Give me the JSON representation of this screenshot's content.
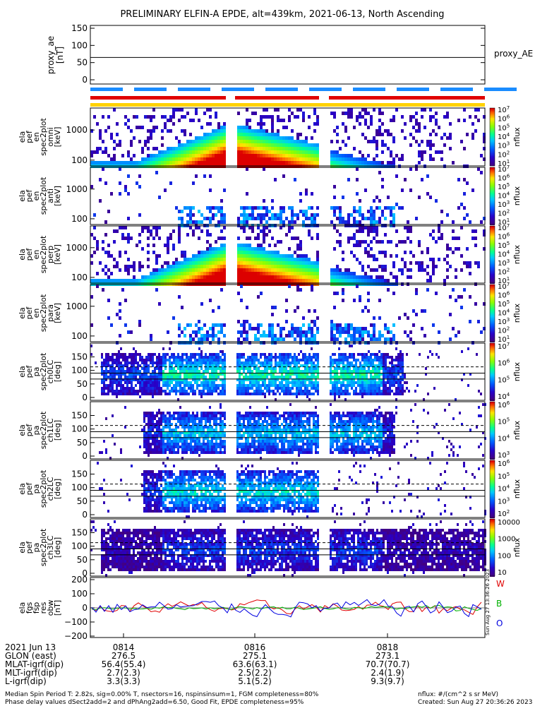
{
  "title": "PRELIMINARY ELFIN-A EPDE, alt=439km, 2021-06-13, North Ascending",
  "chart_data": [
    {
      "type": "line",
      "name": "proxy_ae",
      "ylabel": "proxy_ae [nT]",
      "legend": "proxy_AE",
      "yticks": [
        "150",
        "100",
        "50",
        "0"
      ],
      "ylim": [
        0,
        150
      ],
      "value": 65
    },
    {
      "type": "heatmap",
      "name": "energy-spectrogram-1",
      "ylabel": [
        "ela",
        "pef",
        "en",
        "spec2plot",
        "omni",
        "[keV]"
      ],
      "yticks": [
        "1000",
        "100"
      ],
      "zlabel": "nflux",
      "zticks": [
        "10^7",
        "10^6",
        "10^5",
        "10^4",
        "10^3",
        "10^2",
        "10^1"
      ]
    },
    {
      "type": "heatmap",
      "name": "energy-spectrogram-2",
      "ylabel": [
        "ela",
        "pef",
        "en",
        "spec2plot",
        "anti",
        "[keV]"
      ],
      "yticks": [
        "1000",
        "100"
      ],
      "zlabel": "nflux",
      "zticks": [
        "10^7",
        "10^6",
        "10^5",
        "10^4",
        "10^3",
        "10^2",
        "10^1"
      ]
    },
    {
      "type": "heatmap",
      "name": "energy-spectrogram-3",
      "ylabel": [
        "ela",
        "pef",
        "en",
        "spec2plot",
        "perp",
        "[keV]"
      ],
      "yticks": [
        "1000",
        "100"
      ],
      "zlabel": "nflux",
      "zticks": [
        "10^7",
        "10^6",
        "10^5",
        "10^4",
        "10^3",
        "10^2",
        "10^1"
      ]
    },
    {
      "type": "heatmap",
      "name": "energy-spectrogram-4",
      "ylabel": [
        "ela",
        "pef",
        "en",
        "spec2plot",
        "para",
        "[keV]"
      ],
      "yticks": [
        "1000",
        "100"
      ],
      "zlabel": "nflux",
      "zticks": [
        "10^7",
        "10^6",
        "10^5",
        "10^4",
        "10^3",
        "10^2",
        "10^1"
      ]
    },
    {
      "type": "heatmap",
      "name": "pitch-spectrogram-0",
      "ylabel": [
        "ela",
        "pef",
        "pa",
        "spec2plot",
        "ch0LC",
        "[deg]"
      ],
      "yticks": [
        "150",
        "100",
        "50",
        "0"
      ],
      "zlabel": "nflux",
      "zticks": [
        "10^7",
        "10^6",
        "10^5",
        "10^4"
      ]
    },
    {
      "type": "heatmap",
      "name": "pitch-spectrogram-1",
      "ylabel": [
        "ela",
        "pef",
        "pa",
        "spec2plot",
        "ch1LC",
        "[deg]"
      ],
      "yticks": [
        "150",
        "100",
        "50",
        "0"
      ],
      "zlabel": "nflux",
      "zticks": [
        "10^6",
        "10^5",
        "10^4",
        "10^3"
      ]
    },
    {
      "type": "heatmap",
      "name": "pitch-spectrogram-2",
      "ylabel": [
        "ela",
        "pef",
        "pa",
        "spec2plot",
        "ch2LC",
        "[deg]"
      ],
      "yticks": [
        "150",
        "100",
        "50",
        "0"
      ],
      "zlabel": "nflux",
      "zticks": [
        "10^6",
        "10^5",
        "10^4",
        "10^3",
        "10^2"
      ]
    },
    {
      "type": "heatmap",
      "name": "pitch-spectrogram-3",
      "ylabel": [
        "ela",
        "pef",
        "pa",
        "spec2plot",
        "ch3LC",
        "[deg]"
      ],
      "yticks": [
        "150",
        "100",
        "50",
        "0"
      ],
      "zlabel": "nflux",
      "zticks": [
        "10000",
        "1000",
        "100",
        "10"
      ]
    },
    {
      "type": "line",
      "name": "fgs-residual",
      "ylabel": [
        "ela",
        "fgs",
        "fsp",
        "res",
        "obw",
        "[nT]"
      ],
      "yticks": [
        "200",
        "100",
        "0",
        "−100",
        "−200"
      ],
      "ylim": [
        -200,
        200
      ],
      "series": [
        {
          "name": "W",
          "color": "#e00000"
        },
        {
          "name": "B",
          "color": "#00b000"
        },
        {
          "name": "O",
          "color": "#0000e0"
        }
      ]
    }
  ],
  "orbit": {
    "rows": [
      {
        "label": "2021 Jun 13",
        "values": [
          "0814",
          "0816",
          "0818"
        ]
      },
      {
        "label": "GLON (east)",
        "values": [
          "276.5",
          "275.1",
          "273.1"
        ]
      },
      {
        "label": "MLAT-igrf(dip)",
        "values": [
          "56.4(55.4)",
          "63.6(63.1)",
          "70.7(70.7)"
        ]
      },
      {
        "label": "MLT-igrf(dip)",
        "values": [
          "2.7(2.3)",
          "2.5(2.2)",
          "2.4(1.9)"
        ]
      },
      {
        "label": "L-igrf(dip)",
        "values": [
          "3.3(3.3)",
          "5.1(5.2)",
          "9.3(9.7)"
        ]
      }
    ]
  },
  "footer": {
    "line1": "Median Spin Period T: 2.82s, sig=0.00% T, nsectors=16, nspinsinsum=1, FGM completeness=80%",
    "line2": "Phase delay values dSect2add=2 and dPhAng2add=6.50, Good Fit, EPDE completeness=95%",
    "units": "nflux: #/(cm^2 s sr MeV)",
    "created": "Created: Sun Aug 27 20:36:26 2023",
    "vertical": "Sun Aug 27 13:36:26 2023"
  },
  "colors": {
    "red_bar": "#e00000",
    "blue_dash": "#1a8cff",
    "yellow_bar": "#ffd200"
  }
}
